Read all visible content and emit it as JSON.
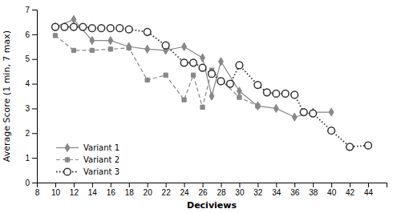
{
  "chart_data": {
    "type": "line",
    "xlabel": "Deciviews",
    "ylabel": "Average Score (1 min, 7 max)",
    "xlim": [
      8,
      46
    ],
    "ylim": [
      0,
      7
    ],
    "xticks": [
      8,
      10,
      12,
      14,
      16,
      18,
      20,
      22,
      24,
      26,
      28,
      30,
      32,
      34,
      36,
      38,
      40,
      42,
      44
    ],
    "yticks": [
      0,
      1,
      2,
      3,
      4,
      5,
      6,
      7
    ],
    "grid": false,
    "legend": "lower-left",
    "series": [
      {
        "name": "Variant 1",
        "color": "#888888",
        "line_style": "solid",
        "marker": "diamond",
        "x": [
          10,
          12,
          14,
          16,
          18,
          20,
          22,
          24,
          26,
          27,
          28,
          30,
          32,
          34,
          36,
          38,
          40
        ],
        "values": [
          6.3,
          6.6,
          5.75,
          5.75,
          5.5,
          5.4,
          5.35,
          5.5,
          5.05,
          3.5,
          4.9,
          3.7,
          3.1,
          3.0,
          2.65,
          2.85,
          2.85
        ]
      },
      {
        "name": "Variant 2",
        "color": "#888888",
        "line_style": "dashed",
        "marker": "square",
        "x": [
          10,
          12,
          14,
          16,
          18,
          20,
          22,
          24,
          25,
          26,
          27,
          28,
          30,
          32
        ],
        "values": [
          5.95,
          5.35,
          5.35,
          5.4,
          5.45,
          4.15,
          4.35,
          3.35,
          4.35,
          3.05,
          4.55,
          4.15,
          3.45,
          3.1
        ]
      },
      {
        "name": "Variant 3",
        "color": "#333333",
        "line_style": "dotted",
        "marker": "circle",
        "x": [
          10,
          11,
          12,
          13,
          14,
          15,
          16,
          17,
          18,
          20,
          22,
          24,
          25,
          26,
          27,
          28,
          29,
          30,
          32,
          33,
          34,
          35,
          36,
          37,
          38,
          40,
          42,
          44
        ],
        "values": [
          6.3,
          6.3,
          6.3,
          6.3,
          6.25,
          6.25,
          6.25,
          6.25,
          6.2,
          6.1,
          5.55,
          4.85,
          4.85,
          4.65,
          4.4,
          4.1,
          4.0,
          4.75,
          3.95,
          3.65,
          3.6,
          3.6,
          3.55,
          2.85,
          2.8,
          2.1,
          1.45,
          1.5
        ]
      }
    ]
  }
}
